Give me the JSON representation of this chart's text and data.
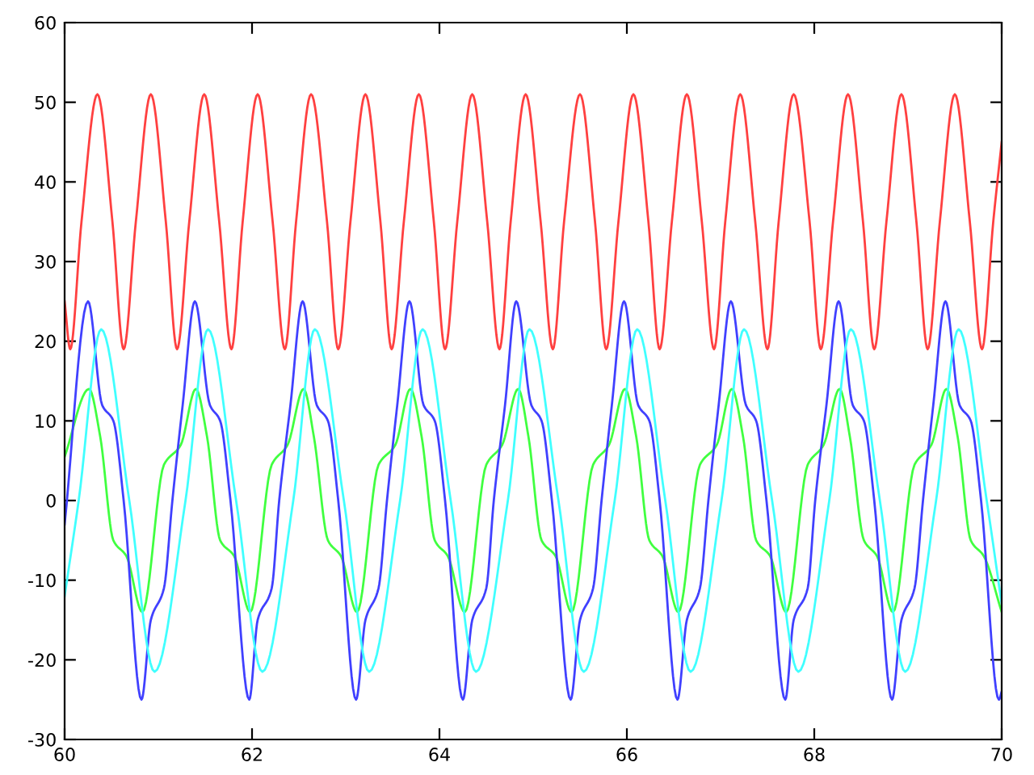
{
  "chart_data": {
    "type": "line",
    "xlim": [
      60,
      70
    ],
    "ylim": [
      -30,
      60
    ],
    "xticks": [
      60,
      62,
      64,
      66,
      68,
      70
    ],
    "yticks": [
      -30,
      -20,
      -10,
      0,
      10,
      20,
      30,
      40,
      50,
      60
    ],
    "grid": false,
    "legend": false,
    "marker": "none",
    "line_style": "solid",
    "series": [
      {
        "color": "#ff4040",
        "x": [
          60,
          60.06,
          60.18,
          60.35,
          60.51,
          60.63,
          60.76,
          60.92,
          61.08,
          61.2,
          61.33,
          61.49,
          61.65,
          61.78,
          61.9,
          62.06,
          62.22,
          62.35,
          62.47,
          62.63,
          62.8,
          62.92,
          63.05,
          63.21,
          63.37,
          63.49,
          63.62,
          63.78,
          63.94,
          64.06,
          64.19,
          64.35,
          64.51,
          64.64,
          64.76,
          64.92,
          65.08,
          65.21,
          65.33,
          65.5,
          65.66,
          65.78,
          65.91,
          66.07,
          66.23,
          66.35,
          66.48,
          66.64,
          66.8,
          66.93,
          67.05,
          67.21,
          67.37,
          67.5,
          67.62,
          67.78,
          67.95,
          68.07,
          68.2,
          68.36,
          68.52,
          68.64,
          68.77,
          68.93,
          69.09,
          69.21,
          69.34,
          69.5,
          69.66,
          69.79,
          69.91,
          70
        ],
        "values": [
          25,
          19,
          35,
          51,
          35,
          19,
          35,
          51,
          35,
          19,
          35,
          51,
          35,
          19,
          35,
          51,
          35,
          19,
          35,
          51,
          35,
          19,
          35,
          51,
          35,
          19,
          35,
          51,
          35,
          19,
          35,
          51,
          35,
          19,
          35,
          51,
          35,
          19,
          35,
          51,
          35,
          19,
          35,
          51,
          35,
          19,
          35,
          51,
          35,
          19,
          35,
          51,
          35,
          19,
          35,
          51,
          35,
          19,
          35,
          51,
          35,
          19,
          35,
          51,
          35,
          19,
          35,
          51,
          35,
          19,
          35,
          45
        ]
      },
      {
        "color": "#40ff40",
        "x": [
          60,
          60.26,
          60.38,
          60.52,
          60.66,
          60.83,
          61.06,
          61.24,
          61.4,
          61.52,
          61.66,
          61.81,
          61.98,
          62.21,
          62.38,
          62.55,
          62.66,
          62.81,
          62.95,
          63.12,
          63.35,
          63.53,
          63.69,
          63.81,
          63.95,
          64.09,
          64.27,
          64.5,
          64.67,
          64.84,
          64.95,
          65.09,
          65.24,
          65.41,
          65.64,
          65.81,
          65.98,
          66.1,
          66.24,
          66.38,
          66.55,
          66.78,
          66.96,
          67.12,
          67.24,
          67.38,
          67.53,
          67.7,
          67.93,
          68.1,
          68.27,
          68.38,
          68.53,
          68.67,
          68.84,
          69.07,
          69.25,
          69.41,
          69.53,
          69.67,
          69.81,
          70
        ],
        "values": [
          5.5,
          14,
          8,
          -5,
          -7,
          -14,
          4.5,
          7,
          14,
          8,
          -5,
          -7,
          -14,
          4.5,
          7,
          14,
          8,
          -5,
          -7,
          -14,
          4.5,
          7,
          14,
          8,
          -5,
          -7,
          -14,
          4.5,
          7,
          14,
          8,
          -5,
          -7,
          -14,
          4.5,
          7,
          14,
          8,
          -5,
          -7,
          -14,
          4.5,
          7,
          14,
          8,
          -5,
          -7,
          -14,
          4.5,
          7,
          14,
          8,
          -5,
          -7,
          -14,
          4.5,
          7,
          14,
          8,
          -5,
          -7,
          -14
        ]
      },
      {
        "color": "#4040ff",
        "x": [
          60,
          60.25,
          60.4,
          60.52,
          60.63,
          60.82,
          60.92,
          61.06,
          61.15,
          61.26,
          61.39,
          61.55,
          61.66,
          61.77,
          61.97,
          62.06,
          62.21,
          62.29,
          62.41,
          62.54,
          62.69,
          62.81,
          62.92,
          63.11,
          63.21,
          63.35,
          63.44,
          63.55,
          63.68,
          63.83,
          63.95,
          64.06,
          64.25,
          64.35,
          64.5,
          64.58,
          64.7,
          64.82,
          64.98,
          65.09,
          65.2,
          65.4,
          65.5,
          65.64,
          65.73,
          65.84,
          65.97,
          66.12,
          66.24,
          66.35,
          66.54,
          66.64,
          66.78,
          66.87,
          66.98,
          67.11,
          67.27,
          67.38,
          67.49,
          67.69,
          67.78,
          67.93,
          68.01,
          68.13,
          68.26,
          68.41,
          68.53,
          68.64,
          68.83,
          68.93,
          69.07,
          69.16,
          69.27,
          69.4,
          69.55,
          69.67,
          69.78,
          69.97,
          70
        ],
        "values": [
          -3,
          25,
          12,
          10,
          0,
          -25,
          -15,
          -11,
          0,
          12,
          25,
          12,
          10,
          0,
          -25,
          -15,
          -11,
          0,
          12,
          25,
          12,
          10,
          0,
          -25,
          -15,
          -11,
          0,
          12,
          25,
          12,
          10,
          0,
          -25,
          -15,
          -11,
          0,
          12,
          25,
          12,
          10,
          0,
          -25,
          -15,
          -11,
          0,
          12,
          25,
          12,
          10,
          0,
          -25,
          -15,
          -11,
          0,
          12,
          25,
          12,
          10,
          0,
          -25,
          -15,
          -11,
          0,
          12,
          25,
          12,
          10,
          0,
          -25,
          -15,
          -11,
          0,
          12,
          25,
          12,
          10,
          0,
          -25,
          -24
        ]
      },
      {
        "color": "#40ffff",
        "x": [
          60,
          60.15,
          60.39,
          60.69,
          60.96,
          61.29,
          61.53,
          61.83,
          62.11,
          62.44,
          62.67,
          62.98,
          63.25,
          63.58,
          63.82,
          64.12,
          64.39,
          64.73,
          64.96,
          65.27,
          65.54,
          65.87,
          66.11,
          66.41,
          66.68,
          67.01,
          67.25,
          67.55,
          67.83,
          68.16,
          68.39,
          68.7,
          68.97,
          69.3,
          69.54,
          69.84,
          70
        ],
        "values": [
          -12,
          0,
          21.5,
          0,
          -21.5,
          0,
          21.5,
          0,
          -21.5,
          0,
          21.5,
          0,
          -21.5,
          0,
          21.5,
          0,
          -21.5,
          0,
          21.5,
          0,
          -21.5,
          0,
          21.5,
          0,
          -21.5,
          0,
          21.5,
          0,
          -21.5,
          0,
          21.5,
          0,
          -21.5,
          0,
          21.5,
          0,
          -13
        ]
      }
    ]
  }
}
